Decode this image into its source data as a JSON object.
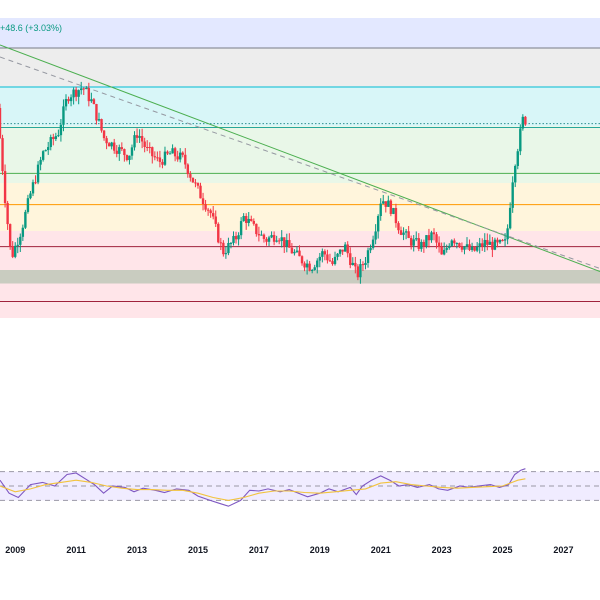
{
  "header": {
    "change_text": "+48.6 (+3.03%)",
    "change_color": "#089981"
  },
  "chart_data": [
    {
      "type": "candlestick",
      "panel": "price",
      "x_axis_ticks": [
        "2009",
        "2011",
        "2013",
        "2015",
        "2017",
        "2019",
        "2021",
        "2023",
        "2025",
        "2027"
      ],
      "x_range": [
        2008.5,
        2028.2
      ],
      "y_range": [
        0,
        100
      ],
      "colors": {
        "up": "#089981",
        "down": "#f23645",
        "trendline": "#4caf50",
        "dashed_trendline": "#9598a1"
      },
      "zones": [
        {
          "from": 90,
          "to": 100,
          "color": "#e3e8ff"
        },
        {
          "from": 77,
          "to": 90,
          "color": "#ededed"
        },
        {
          "from": 64,
          "to": 77,
          "color": "#d8f6f8"
        },
        {
          "from": 45,
          "to": 64,
          "color": "#e9f7e8"
        },
        {
          "from": 29,
          "to": 45,
          "color": "#fff5dc"
        },
        {
          "from": 0,
          "to": 29,
          "color": "#ffe5e9"
        }
      ],
      "levels": [
        {
          "value": 90,
          "color": "#787b86",
          "style": "solid"
        },
        {
          "value": 77,
          "color": "#00bcd4",
          "style": "solid"
        },
        {
          "value": 64.8,
          "color": "#2f8f8f",
          "style": "dotted"
        },
        {
          "value": 63.5,
          "color": "#26a69a",
          "style": "solid"
        },
        {
          "value": 48.2,
          "color": "#4caf50",
          "style": "solid"
        },
        {
          "value": 37.8,
          "color": "#ff9800",
          "style": "solid"
        },
        {
          "value": 23.8,
          "color": "#a0223c",
          "style": "solid"
        },
        {
          "value": 5.5,
          "color": "#a0223c",
          "style": "solid"
        }
      ],
      "support_band": {
        "from": 11.5,
        "to": 16.0,
        "color": "#bfc8b8"
      },
      "trendline": {
        "start": [
          2008.5,
          91.0
        ],
        "end": [
          2028.2,
          15.5
        ]
      },
      "dashed_trendline": {
        "start": [
          2008.5,
          87.0
        ],
        "end": [
          2028.2,
          16.5
        ]
      },
      "anchors": [
        [
          2008.5,
          70
        ],
        [
          2008.75,
          40
        ],
        [
          2008.95,
          20
        ],
        [
          2009.3,
          30
        ],
        [
          2009.6,
          42
        ],
        [
          2010.0,
          55
        ],
        [
          2010.5,
          62
        ],
        [
          2010.8,
          74
        ],
        [
          2011.3,
          77
        ],
        [
          2011.6,
          72
        ],
        [
          2011.8,
          66
        ],
        [
          2012.0,
          60
        ],
        [
          2012.5,
          56
        ],
        [
          2012.8,
          54
        ],
        [
          2013.1,
          62
        ],
        [
          2013.4,
          56
        ],
        [
          2013.8,
          52
        ],
        [
          2014.2,
          55
        ],
        [
          2014.6,
          53
        ],
        [
          2015.0,
          44
        ],
        [
          2015.5,
          35
        ],
        [
          2015.9,
          22
        ],
        [
          2016.3,
          26
        ],
        [
          2016.6,
          34
        ],
        [
          2016.9,
          30
        ],
        [
          2017.3,
          26
        ],
        [
          2017.7,
          28
        ],
        [
          2018.0,
          24
        ],
        [
          2018.4,
          20
        ],
        [
          2018.8,
          17
        ],
        [
          2019.2,
          22
        ],
        [
          2019.5,
          18
        ],
        [
          2019.9,
          24
        ],
        [
          2020.15,
          18
        ],
        [
          2020.3,
          14
        ],
        [
          2020.6,
          20
        ],
        [
          2020.9,
          30
        ],
        [
          2021.1,
          40
        ],
        [
          2021.4,
          37
        ],
        [
          2021.7,
          30
        ],
        [
          2022.0,
          26
        ],
        [
          2022.4,
          24
        ],
        [
          2022.8,
          28
        ],
        [
          2023.1,
          20
        ],
        [
          2023.4,
          27
        ],
        [
          2023.8,
          24
        ],
        [
          2024.1,
          22
        ],
        [
          2024.5,
          25
        ],
        [
          2024.9,
          24
        ],
        [
          2025.2,
          25
        ],
        [
          2025.35,
          40
        ],
        [
          2025.45,
          50
        ],
        [
          2025.6,
          58
        ],
        [
          2025.75,
          66
        ]
      ]
    },
    {
      "type": "line",
      "panel": "rsi",
      "x_range": [
        2008.5,
        2028.2
      ],
      "y_range": [
        0,
        100
      ],
      "band": {
        "from": 30,
        "to": 70,
        "color": "#f0ecff"
      },
      "levels": [
        70,
        50,
        30
      ],
      "series": [
        {
          "key": "rsi",
          "color": "#7e57c2",
          "points": [
            [
              2008.5,
              58
            ],
            [
              2008.8,
              40
            ],
            [
              2009.1,
              34
            ],
            [
              2009.5,
              52
            ],
            [
              2009.9,
              55
            ],
            [
              2010.3,
              50
            ],
            [
              2010.7,
              66
            ],
            [
              2011.0,
              68
            ],
            [
              2011.3,
              60
            ],
            [
              2011.6,
              52
            ],
            [
              2011.9,
              40
            ],
            [
              2012.2,
              50
            ],
            [
              2012.6,
              48
            ],
            [
              2012.9,
              42
            ],
            [
              2013.2,
              47
            ],
            [
              2013.6,
              44
            ],
            [
              2013.9,
              41
            ],
            [
              2014.3,
              46
            ],
            [
              2014.7,
              44
            ],
            [
              2015.0,
              36
            ],
            [
              2015.4,
              30
            ],
            [
              2015.7,
              26
            ],
            [
              2016.0,
              22
            ],
            [
              2016.4,
              30
            ],
            [
              2016.7,
              44
            ],
            [
              2017.0,
              43
            ],
            [
              2017.3,
              46
            ],
            [
              2017.7,
              42
            ],
            [
              2018.0,
              45
            ],
            [
              2018.3,
              40
            ],
            [
              2018.6,
              35
            ],
            [
              2019.0,
              40
            ],
            [
              2019.3,
              46
            ],
            [
              2019.6,
              42
            ],
            [
              2020.0,
              48
            ],
            [
              2020.2,
              38
            ],
            [
              2020.4,
              50
            ],
            [
              2020.7,
              58
            ],
            [
              2021.0,
              64
            ],
            [
              2021.3,
              58
            ],
            [
              2021.6,
              50
            ],
            [
              2021.9,
              52
            ],
            [
              2022.2,
              48
            ],
            [
              2022.6,
              52
            ],
            [
              2022.9,
              46
            ],
            [
              2023.2,
              44
            ],
            [
              2023.6,
              50
            ],
            [
              2023.9,
              48
            ],
            [
              2024.2,
              50
            ],
            [
              2024.6,
              52
            ],
            [
              2024.9,
              48
            ],
            [
              2025.2,
              52
            ],
            [
              2025.4,
              66
            ],
            [
              2025.6,
              72
            ],
            [
              2025.75,
              74
            ]
          ]
        },
        {
          "key": "rsi_ma",
          "color": "#f2c33d",
          "points": [
            [
              2008.5,
              50
            ],
            [
              2009.0,
              42
            ],
            [
              2009.5,
              46
            ],
            [
              2010.0,
              52
            ],
            [
              2010.5,
              55
            ],
            [
              2011.0,
              58
            ],
            [
              2011.5,
              55
            ],
            [
              2012.0,
              50
            ],
            [
              2012.5,
              47
            ],
            [
              2013.0,
              45
            ],
            [
              2013.5,
              45
            ],
            [
              2014.0,
              44
            ],
            [
              2014.5,
              44
            ],
            [
              2015.0,
              40
            ],
            [
              2015.5,
              34
            ],
            [
              2016.0,
              30
            ],
            [
              2016.5,
              34
            ],
            [
              2017.0,
              40
            ],
            [
              2017.5,
              43
            ],
            [
              2018.0,
              43
            ],
            [
              2018.5,
              41
            ],
            [
              2019.0,
              40
            ],
            [
              2019.5,
              42
            ],
            [
              2020.0,
              44
            ],
            [
              2020.5,
              46
            ],
            [
              2021.0,
              54
            ],
            [
              2021.5,
              56
            ],
            [
              2022.0,
              52
            ],
            [
              2022.5,
              50
            ],
            [
              2023.0,
              48
            ],
            [
              2023.5,
              47
            ],
            [
              2024.0,
              48
            ],
            [
              2024.5,
              49
            ],
            [
              2025.0,
              50
            ],
            [
              2025.5,
              58
            ],
            [
              2025.75,
              60
            ]
          ]
        }
      ]
    }
  ]
}
